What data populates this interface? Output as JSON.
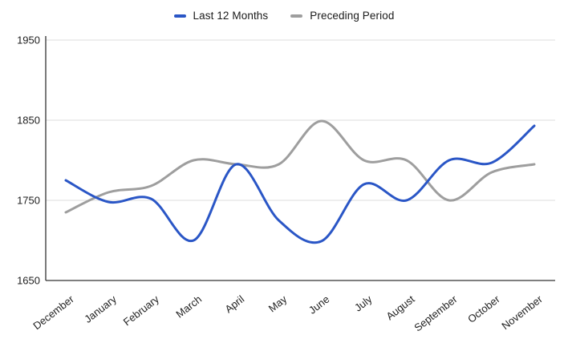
{
  "chart_data": {
    "type": "line",
    "title": "",
    "curve": "smooth",
    "grid": true,
    "legend_position": "top",
    "categories": [
      "December",
      "January",
      "February",
      "March",
      "April",
      "May",
      "June",
      "July",
      "August",
      "September",
      "October",
      "November"
    ],
    "series": [
      {
        "name": "Last 12 Months",
        "color": "#2a56c6",
        "values": [
          1775,
          1748,
          1752,
          1700,
          1795,
          1725,
          1699,
          1770,
          1750,
          1800,
          1797,
          1843
        ]
      },
      {
        "name": "Preceding Period",
        "color": "#9e9e9e",
        "values": [
          1735,
          1760,
          1768,
          1800,
          1795,
          1795,
          1849,
          1800,
          1800,
          1750,
          1785,
          1795
        ]
      }
    ],
    "y_ticks": [
      1650,
      1750,
      1850,
      1950
    ],
    "ylim": [
      1650,
      1950
    ],
    "xlabel": "",
    "ylabel": ""
  },
  "colors": {
    "gridline": "#dcdcdc",
    "axis_line": "#333333",
    "label_text": "#1f1f1f",
    "background": "#ffffff"
  }
}
